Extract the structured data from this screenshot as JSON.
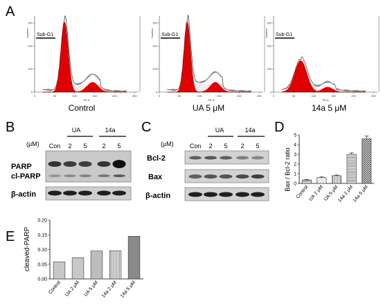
{
  "panels": {
    "A": {
      "letter": "A",
      "histograms": [
        {
          "condition": "Control",
          "gate_label": "Sub-G1",
          "xlabel": "PE-A",
          "ylabel": "Number",
          "yticks": [
            "0",
            "100",
            "200",
            "300"
          ],
          "xticks": [
            "0",
            "50",
            "100",
            "150",
            "200",
            "250"
          ]
        },
        {
          "condition": "UA 5 μM",
          "gate_label": "Sub-G1",
          "xlabel": "PE-A",
          "ylabel": "Number",
          "yticks": [
            "0",
            "100",
            "200",
            "300"
          ],
          "xticks": [
            "0",
            "50",
            "100",
            "150",
            "200",
            "250"
          ]
        },
        {
          "condition": "14a 5 μM",
          "gate_label": "Sub-G1",
          "xlabel": "PE-A",
          "ylabel": "Number",
          "yticks": [
            "0",
            "100",
            "200",
            "300"
          ],
          "xticks": [
            "0",
            "50",
            "100",
            "150",
            "200",
            "250"
          ]
        }
      ]
    },
    "B": {
      "letter": "B",
      "unit": "(μM)",
      "groups": [
        "UA",
        "14a"
      ],
      "lanes": [
        "Con",
        "2",
        "5",
        "2",
        "5"
      ],
      "rows": [
        "PARP",
        "cl-PARP",
        "β-actin"
      ]
    },
    "C": {
      "letter": "C",
      "unit": "(μM)",
      "groups": [
        "UA",
        "14a"
      ],
      "lanes": [
        "Con",
        "2",
        "5",
        "2",
        "5"
      ],
      "rows": [
        "Bcl-2",
        "Bax",
        "β-actin"
      ]
    },
    "D": {
      "letter": "D",
      "chart_data": {
        "type": "bar",
        "categories": [
          "Control",
          "UA 2 μM",
          "UA 5 μM",
          "14a 2 μM",
          "14a 5 μM"
        ],
        "values": [
          0.35,
          0.6,
          0.8,
          3.0,
          4.6
        ],
        "errors": [
          0.05,
          0.07,
          0.06,
          0.15,
          0.3
        ],
        "ylabel": "Bax / Bcl-2 ratio",
        "ylim": [
          0,
          5
        ],
        "yticks": [
          "0",
          "1",
          "2",
          "3",
          "4",
          "5"
        ]
      }
    },
    "E": {
      "letter": "E",
      "chart_data": {
        "type": "bar",
        "categories": [
          "Control",
          "UA 2 μM",
          "UA 5 μM",
          "14a 2 μM",
          "14a 5 μM"
        ],
        "values": [
          0.058,
          0.072,
          0.095,
          0.096,
          0.145
        ],
        "ylabel": "cleaved-PARP",
        "ylim": [
          0,
          0.2
        ],
        "yticks": [
          "0.00",
          "0.05",
          "0.10",
          "0.15",
          "0.20"
        ]
      }
    }
  }
}
